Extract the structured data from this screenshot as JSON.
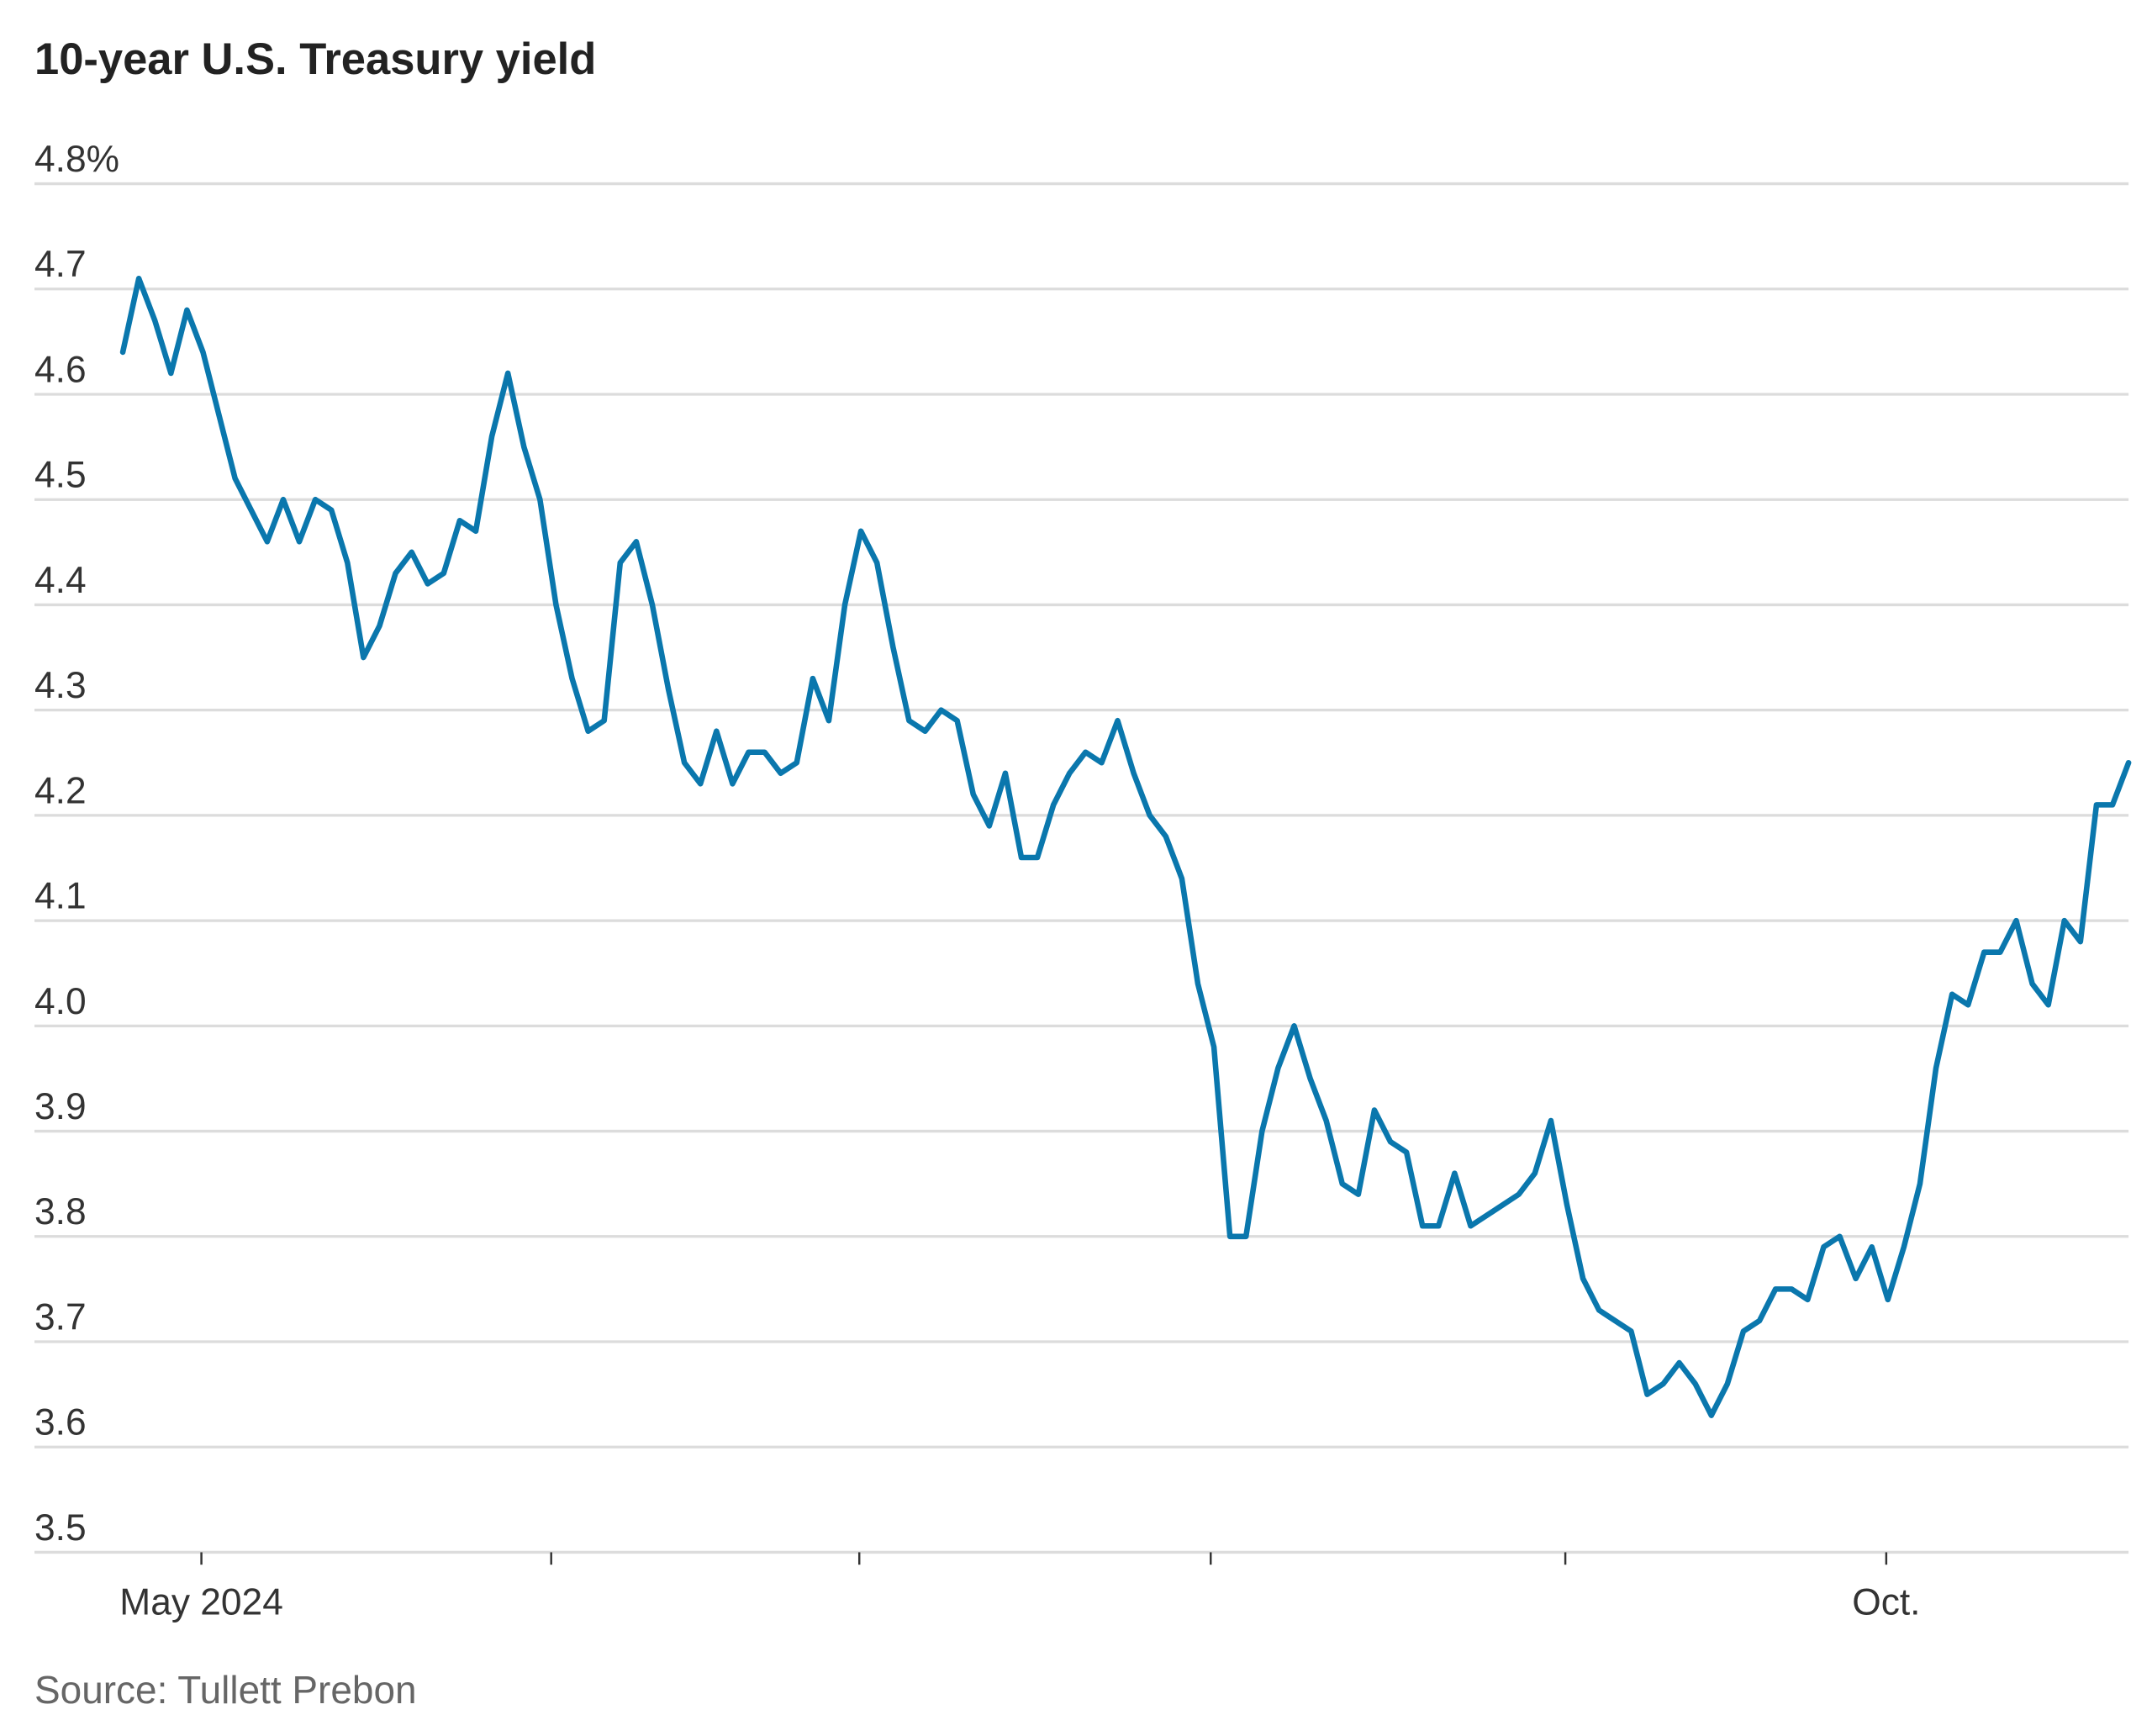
{
  "chart_data": {
    "type": "line",
    "title": "10-year U.S. Treasury yield",
    "source": "Source: Tullett Prebon",
    "series": [
      {
        "name": "10-year U.S. Treasury yield",
        "color": "#0a77ad",
        "values": [
          4.64,
          4.71,
          4.67,
          4.62,
          4.68,
          4.64,
          4.58,
          4.52,
          4.49,
          4.46,
          4.5,
          4.46,
          4.5,
          4.49,
          4.44,
          4.35,
          4.38,
          4.43,
          4.45,
          4.42,
          4.43,
          4.48,
          4.47,
          4.56,
          4.62,
          4.55,
          4.5,
          4.4,
          4.33,
          4.28,
          4.29,
          4.44,
          4.46,
          4.4,
          4.32,
          4.25,
          4.23,
          4.28,
          4.23,
          4.26,
          4.26,
          4.24,
          4.25,
          4.33,
          4.29,
          4.4,
          4.47,
          4.44,
          4.36,
          4.29,
          4.28,
          4.3,
          4.29,
          4.22,
          4.19,
          4.24,
          4.16,
          4.16,
          4.21,
          4.24,
          4.26,
          4.25,
          4.29,
          4.24,
          4.2,
          4.18,
          4.14,
          4.04,
          3.98,
          3.8,
          3.8,
          3.9,
          3.96,
          4.0,
          3.95,
          3.91,
          3.85,
          3.84,
          3.92,
          3.89,
          3.88,
          3.81,
          3.81,
          3.86,
          3.81,
          3.82,
          3.83,
          3.84,
          3.86,
          3.91,
          3.83,
          3.76,
          3.73,
          3.72,
          3.71,
          3.65,
          3.66,
          3.68,
          3.66,
          3.63,
          3.66,
          3.71,
          3.72,
          3.75,
          3.75,
          3.74,
          3.79,
          3.8,
          3.76,
          3.79,
          3.74,
          3.79,
          3.85,
          3.96,
          4.03,
          4.02,
          4.07,
          4.07,
          4.1,
          4.04,
          4.02,
          4.1,
          4.08,
          4.21,
          4.21,
          4.25
        ]
      }
    ],
    "xlim": [
      0,
      125
    ],
    "xticks": [
      {
        "value": 4.9,
        "label": "May 2024"
      },
      26.7,
      45.9,
      67.8,
      89.9,
      {
        "value": 109.9,
        "label": "Oct."
      }
    ],
    "ylim": [
      3.5,
      4.8
    ],
    "yticks": [
      {
        "value": 4.8,
        "label": "4.8%"
      },
      4.7,
      4.6,
      4.5,
      4.4,
      4.3,
      4.2,
      4.1,
      {
        "value": 4,
        "label": "4.0"
      },
      3.9,
      3.8,
      3.7,
      3.6,
      3.5
    ],
    "grid": true
  }
}
